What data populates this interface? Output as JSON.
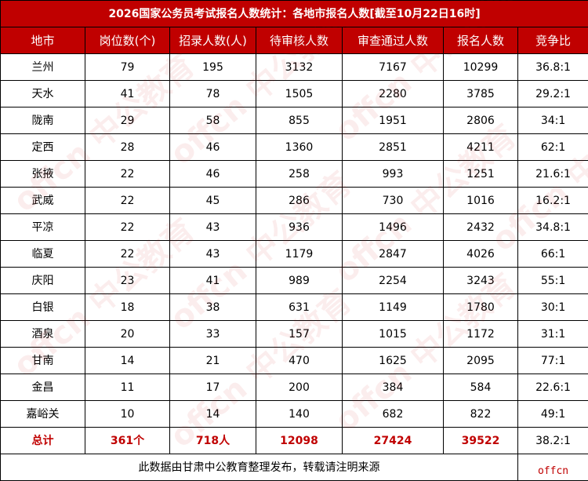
{
  "title": "2026国家公务员考试报名人数统计：各地市报名人数[截至10月22日16时]",
  "headers": [
    "地市",
    "岗位数(个)",
    "招录人数(人)",
    "待审核人数",
    "审查通过人数",
    "报名人数",
    "竞争比"
  ],
  "rows": [
    [
      "兰州",
      "79",
      "195",
      "3132",
      "7167",
      "10299",
      "36.8:1"
    ],
    [
      "天水",
      "41",
      "78",
      "1505",
      "2280",
      "3785",
      "29.2:1"
    ],
    [
      "陇南",
      "29",
      "58",
      "855",
      "1951",
      "2806",
      "34:1"
    ],
    [
      "定西",
      "28",
      "46",
      "1360",
      "2851",
      "4211",
      "62:1"
    ],
    [
      "张掖",
      "22",
      "46",
      "258",
      "993",
      "1251",
      "21.6:1"
    ],
    [
      "武威",
      "22",
      "45",
      "286",
      "730",
      "1016",
      "16.2:1"
    ],
    [
      "平凉",
      "22",
      "43",
      "936",
      "1496",
      "2432",
      "34.8:1"
    ],
    [
      "临夏",
      "22",
      "43",
      "1179",
      "2847",
      "4026",
      "66:1"
    ],
    [
      "庆阳",
      "23",
      "41",
      "989",
      "2254",
      "3243",
      "55:1"
    ],
    [
      "白银",
      "18",
      "38",
      "631",
      "1149",
      "1780",
      "30:1"
    ],
    [
      "酒泉",
      "20",
      "33",
      "157",
      "1015",
      "1172",
      "31:1"
    ],
    [
      "甘南",
      "14",
      "21",
      "470",
      "1625",
      "2095",
      "77:1"
    ],
    [
      "金昌",
      "11",
      "17",
      "200",
      "384",
      "584",
      "22.6:1"
    ],
    [
      "嘉峪关",
      "10",
      "14",
      "140",
      "682",
      "822",
      "49:1"
    ]
  ],
  "total": [
    "总计",
    "361个",
    "718人",
    "12098",
    "27424",
    "39522",
    "38.2:1"
  ],
  "footer": {
    "note": "此数据由甘肃中公教育整理发布，转载请注明来源",
    "brand": "offcn"
  },
  "watermark": "offcn 中公教育",
  "colors": {
    "header_bg": "#c00000",
    "accent": "#c00000"
  }
}
